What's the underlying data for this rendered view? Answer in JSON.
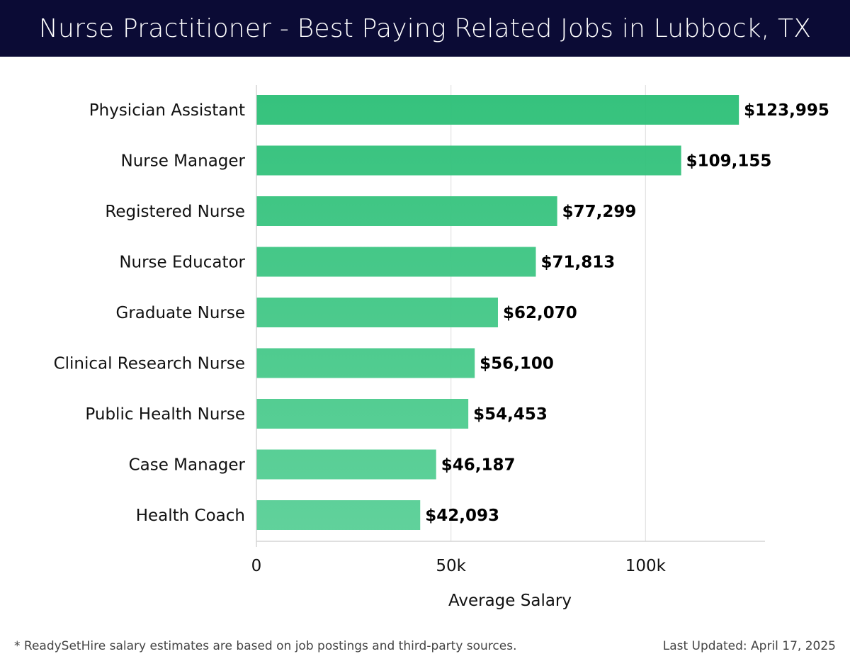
{
  "header": {
    "title": "Nurse Practitioner - Best Paying Related Jobs in Lubbock, TX"
  },
  "chart_data": {
    "type": "bar",
    "orientation": "horizontal",
    "categories": [
      "Physician Assistant",
      "Nurse Manager",
      "Registered Nurse",
      "Nurse Educator",
      "Graduate Nurse",
      "Clinical Research Nurse",
      "Public Health Nurse",
      "Case Manager",
      "Health Coach"
    ],
    "values": [
      123995,
      109155,
      77299,
      71813,
      62070,
      56100,
      54453,
      46187,
      42093
    ],
    "value_labels": [
      "$123,995",
      "$109,155",
      "$77,299",
      "$71,813",
      "$62,070",
      "$56,100",
      "$54,453",
      "$46,187",
      "$42,093"
    ],
    "xlabel": "Average Salary",
    "ylabel": "",
    "xlim": [
      0,
      130700
    ],
    "xticks": [
      0,
      50000,
      100000
    ],
    "xtick_labels": [
      "0",
      "50k",
      "100k"
    ],
    "grid": "vertical",
    "legend": "none",
    "colors": {
      "bar_top": "#2bbf76",
      "bar_bottom": "#58cf96",
      "grid": "#e3e3e3",
      "axis": "#cccccc",
      "label": "#111111"
    }
  },
  "footer": {
    "note": "* ReadySetHire salary estimates are based on job postings and third-party sources.",
    "updated": "Last Updated: April 17, 2025"
  }
}
